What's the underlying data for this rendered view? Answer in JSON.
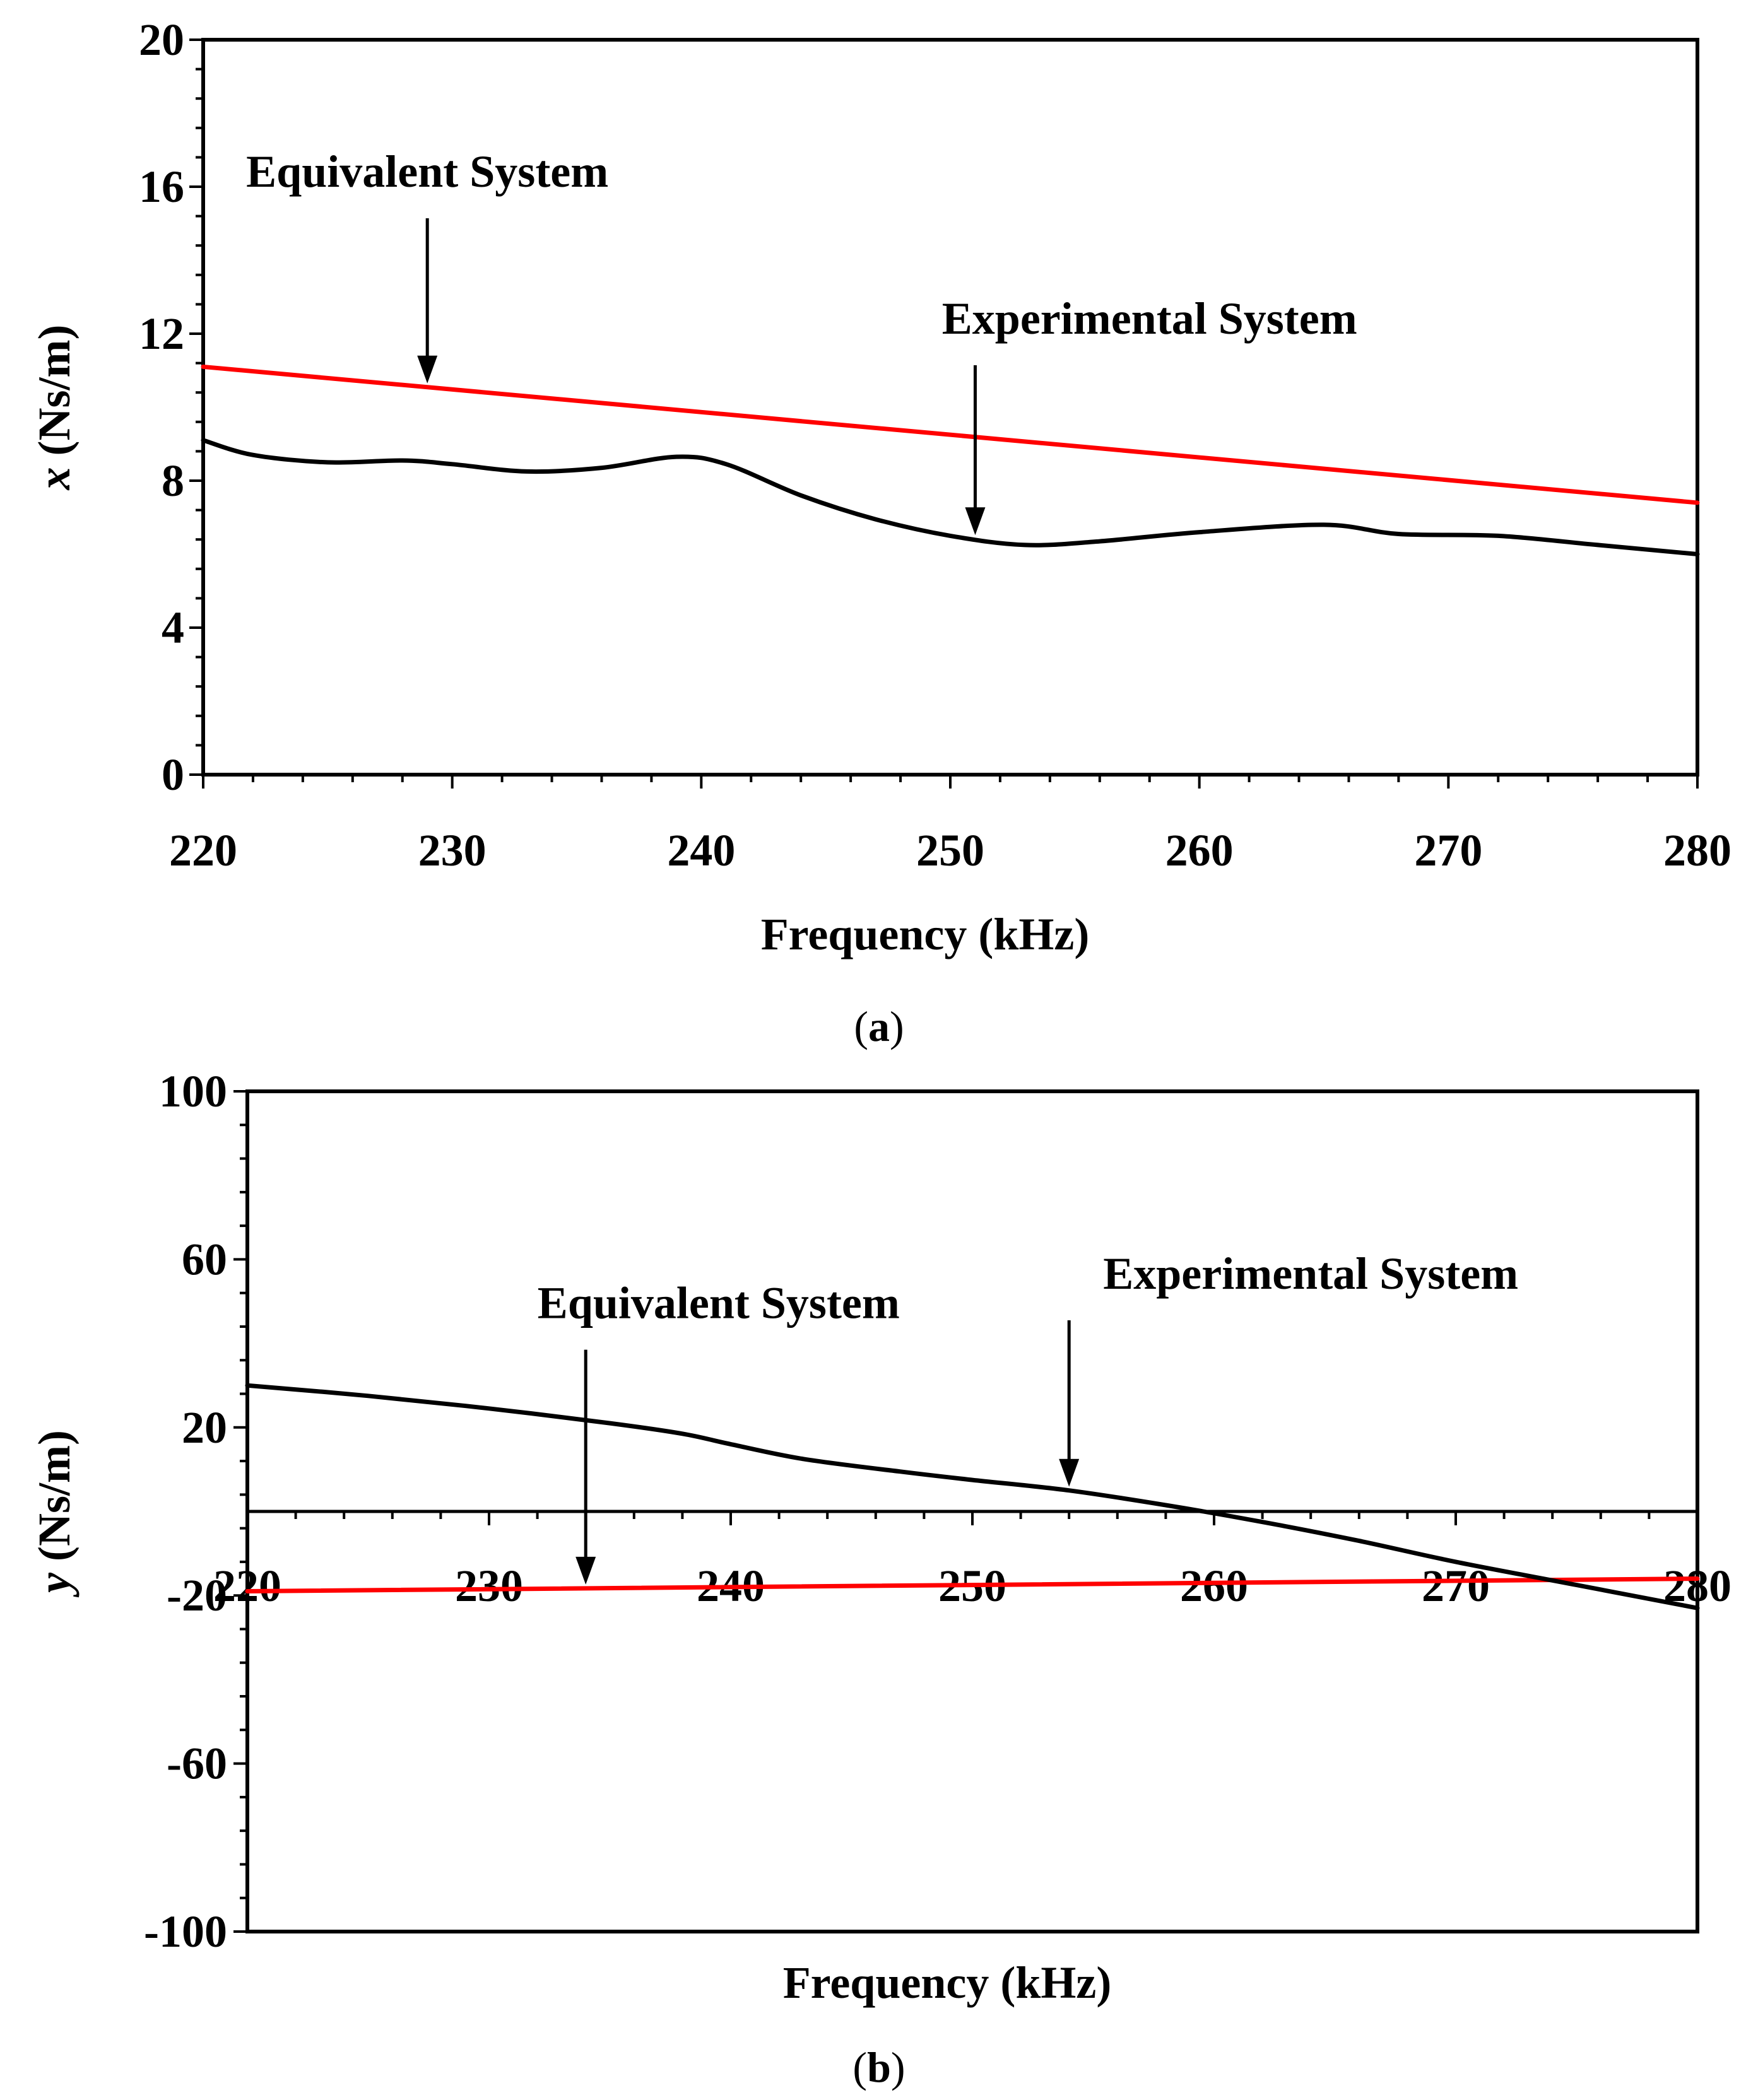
{
  "chart_data": [
    {
      "id": "a",
      "type": "line",
      "caption_letter": "a",
      "xlabel": "Frequency (kHz)",
      "ylabel_var": "x",
      "ylabel_unit": " (Ns/m)",
      "xlim": [
        220,
        280
      ],
      "ylim": [
        0,
        20
      ],
      "xticks": [
        220,
        230,
        240,
        250,
        260,
        270,
        280
      ],
      "yticks": [
        0,
        4,
        8,
        12,
        16,
        20
      ],
      "series": [
        {
          "name": "Equivalent System",
          "color": "#ff0000",
          "x": [
            220,
            280
          ],
          "y": [
            11.1,
            7.4
          ]
        },
        {
          "name": "Experimental System",
          "color": "#000000",
          "x": [
            220,
            222,
            225,
            228,
            230,
            233,
            236,
            239,
            241,
            244,
            247,
            250,
            253,
            256,
            260,
            265,
            268,
            272,
            276,
            280
          ],
          "y": [
            9.1,
            8.7,
            8.5,
            8.55,
            8.45,
            8.25,
            8.35,
            8.65,
            8.45,
            7.6,
            6.95,
            6.5,
            6.25,
            6.35,
            6.6,
            6.8,
            6.55,
            6.5,
            6.25,
            6.0
          ]
        }
      ],
      "annotations": [
        {
          "text": "Equivalent System",
          "target_series": "Equivalent System",
          "target_x": 229,
          "label_x": 229,
          "label_y": 16
        },
        {
          "text": "Experimental System",
          "target_series": "Experimental System",
          "target_x": 251,
          "label_x": 258,
          "label_y": 12
        }
      ]
    },
    {
      "id": "b",
      "type": "line",
      "caption_letter": "b",
      "xlabel": "Frequency (kHz)",
      "ylabel_var": "y",
      "ylabel_unit": " (Ns/m)",
      "xlim": [
        220,
        280
      ],
      "ylim": [
        -100,
        100
      ],
      "xticks": [
        220,
        230,
        240,
        250,
        260,
        270,
        280
      ],
      "yticks": [
        -100,
        -60,
        -20,
        20,
        60,
        100
      ],
      "xaxis_at_y": 0,
      "series": [
        {
          "name": "Equivalent System",
          "color": "#ff0000",
          "x": [
            220,
            280
          ],
          "y": [
            -19,
            -16
          ]
        },
        {
          "name": "Experimental System",
          "color": "#000000",
          "x": [
            220,
            225,
            230,
            235,
            238,
            240,
            243,
            247,
            250,
            254,
            258,
            262,
            266,
            270,
            275,
            280
          ],
          "y": [
            30,
            27.5,
            24.5,
            21,
            18.5,
            16,
            12.5,
            9.5,
            7.5,
            5,
            1.5,
            -2.5,
            -7,
            -12,
            -17.5,
            -23
          ]
        }
      ],
      "annotations": [
        {
          "text": "Equivalent System",
          "target_series": "Equivalent System",
          "target_x": 234,
          "label_x": 239.5,
          "label_y": 46
        },
        {
          "text": "Experimental System",
          "target_series": "Experimental System",
          "target_x": 254,
          "label_x": 264,
          "label_y": 53
        }
      ]
    }
  ]
}
